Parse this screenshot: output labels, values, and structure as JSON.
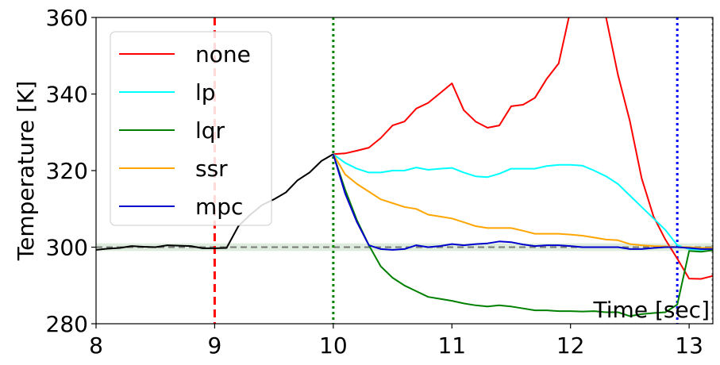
{
  "chart_data": {
    "type": "line",
    "title": "",
    "xlabel": "Time [sec]",
    "ylabel": "Temperature [K]",
    "xlim": [
      8,
      13.2
    ],
    "ylim": [
      280,
      360
    ],
    "xticks": [
      8,
      9,
      10,
      11,
      12,
      13
    ],
    "yticks": [
      280,
      300,
      320,
      340,
      360
    ],
    "grid": false,
    "legend_placement": "top-left",
    "setpoint": {
      "value": 300,
      "band": [
        299,
        301
      ],
      "line_color": "#777777",
      "band_color": "#c8dfc8"
    },
    "vlines": [
      {
        "x": 9,
        "color": "#ff0000",
        "style": "dashed"
      },
      {
        "x": 10,
        "color": "#008000",
        "style": "dotted"
      },
      {
        "x": 12.9,
        "color": "#0000ff",
        "style": "dotted"
      },
      {
        "x": 13.2,
        "color": "#808080",
        "style": "dotted"
      }
    ],
    "history": {
      "color": "#000000",
      "x": [
        8.0,
        8.1,
        8.2,
        8.3,
        8.4,
        8.5,
        8.6,
        8.7,
        8.8,
        8.9,
        9.0,
        9.1,
        9.2,
        9.3,
        9.4,
        9.5,
        9.6,
        9.7,
        9.8,
        9.9,
        10.0
      ],
      "y": [
        299.3,
        299.6,
        299.8,
        300.3,
        300.1,
        300.0,
        300.5,
        300.4,
        300.3,
        299.7,
        299.7,
        299.8,
        305.5,
        308.5,
        311.0,
        312.5,
        314.3,
        317.5,
        319.5,
        322.5,
        324.3
      ]
    },
    "series": [
      {
        "name": "none",
        "color": "#ff0000",
        "x": [
          10.0,
          10.1,
          10.2,
          10.3,
          10.4,
          10.5,
          10.6,
          10.7,
          10.8,
          10.9,
          11.0,
          11.1,
          11.2,
          11.3,
          11.4,
          11.5,
          11.6,
          11.7,
          11.8,
          11.9,
          12.0,
          12.05,
          12.1,
          12.2,
          12.3,
          12.4,
          12.5,
          12.6,
          12.7,
          12.8,
          12.9,
          13.0,
          13.1,
          13.2
        ],
        "y": [
          324.3,
          324.5,
          325.2,
          326.0,
          328.5,
          331.8,
          332.8,
          336.2,
          337.7,
          340.2,
          342.8,
          335.8,
          332.8,
          331.2,
          331.8,
          336.8,
          337.2,
          339.0,
          344.0,
          348.0,
          362.0,
          368.0,
          368.0,
          368.0,
          360.0,
          345.0,
          333.0,
          318.0,
          308.0,
          302.0,
          297.0,
          291.8,
          291.7,
          292.5
        ]
      },
      {
        "name": "lp",
        "color": "#00ffff",
        "x": [
          10.0,
          10.1,
          10.2,
          10.3,
          10.4,
          10.5,
          10.6,
          10.7,
          10.8,
          10.9,
          11.0,
          11.1,
          11.2,
          11.3,
          11.4,
          11.5,
          11.6,
          11.7,
          11.8,
          11.9,
          12.0,
          12.1,
          12.2,
          12.3,
          12.4,
          12.5,
          12.6,
          12.7,
          12.8,
          12.9,
          13.0,
          13.1,
          13.2
        ],
        "y": [
          324.3,
          322.0,
          320.5,
          319.5,
          319.5,
          320.0,
          320.0,
          320.8,
          320.2,
          320.5,
          320.7,
          319.5,
          318.5,
          318.3,
          319.2,
          320.5,
          320.5,
          320.5,
          321.2,
          321.5,
          321.5,
          321.3,
          320.0,
          318.5,
          316.5,
          313.5,
          310.5,
          307.5,
          304.5,
          300.5,
          299.5,
          299.3,
          299.7
        ]
      },
      {
        "name": "lqr",
        "color": "#008000",
        "x": [
          10.0,
          10.1,
          10.2,
          10.3,
          10.4,
          10.5,
          10.6,
          10.7,
          10.8,
          10.9,
          11.0,
          11.1,
          11.2,
          11.3,
          11.4,
          11.5,
          11.6,
          11.7,
          11.8,
          11.9,
          12.0,
          12.1,
          12.2,
          12.3,
          12.4,
          12.5,
          12.6,
          12.7,
          12.8,
          12.9,
          13.0,
          13.1,
          13.2
        ],
        "y": [
          324.3,
          315.0,
          307.0,
          300.5,
          295.0,
          292.0,
          290.0,
          288.5,
          287.0,
          286.5,
          286.0,
          285.3,
          284.8,
          284.5,
          284.8,
          284.5,
          284.0,
          283.5,
          283.5,
          283.3,
          283.3,
          283.2,
          283.3,
          283.0,
          283.0,
          282.0,
          282.5,
          282.8,
          283.0,
          285.0,
          299.0,
          298.8,
          299.2
        ]
      },
      {
        "name": "ssr",
        "color": "#ffa500",
        "x": [
          10.0,
          10.1,
          10.2,
          10.3,
          10.4,
          10.5,
          10.6,
          10.7,
          10.8,
          10.9,
          11.0,
          11.1,
          11.2,
          11.3,
          11.4,
          11.5,
          11.6,
          11.7,
          11.8,
          11.9,
          12.0,
          12.1,
          12.2,
          12.3,
          12.4,
          12.5,
          12.6,
          12.7,
          12.8,
          12.9,
          13.0,
          13.1,
          13.2
        ],
        "y": [
          324.3,
          319.0,
          316.5,
          314.5,
          312.5,
          311.5,
          310.5,
          310.0,
          308.5,
          308.0,
          307.5,
          306.5,
          305.5,
          305.0,
          305.0,
          305.0,
          304.3,
          303.5,
          303.5,
          303.5,
          303.3,
          303.0,
          302.5,
          302.0,
          301.8,
          300.8,
          300.5,
          300.3,
          300.2,
          300.0,
          300.0,
          299.8,
          299.8
        ]
      },
      {
        "name": "mpc",
        "color": "#0000cd",
        "x": [
          10.0,
          10.1,
          10.2,
          10.3,
          10.4,
          10.5,
          10.6,
          10.7,
          10.8,
          10.9,
          11.0,
          11.1,
          11.2,
          11.3,
          11.4,
          11.5,
          11.6,
          11.7,
          11.8,
          11.9,
          12.0,
          12.1,
          12.2,
          12.3,
          12.4,
          12.5,
          12.6,
          12.7,
          12.8,
          12.9,
          13.0,
          13.1,
          13.2
        ],
        "y": [
          324.3,
          314.0,
          306.5,
          300.5,
          299.5,
          299.3,
          299.5,
          300.5,
          300.0,
          300.3,
          300.8,
          300.5,
          300.8,
          301.0,
          301.5,
          301.3,
          300.7,
          300.3,
          300.5,
          300.5,
          300.3,
          300.0,
          300.0,
          300.0,
          300.0,
          299.5,
          299.5,
          299.8,
          300.0,
          300.0,
          299.8,
          299.5,
          299.5
        ]
      }
    ]
  }
}
